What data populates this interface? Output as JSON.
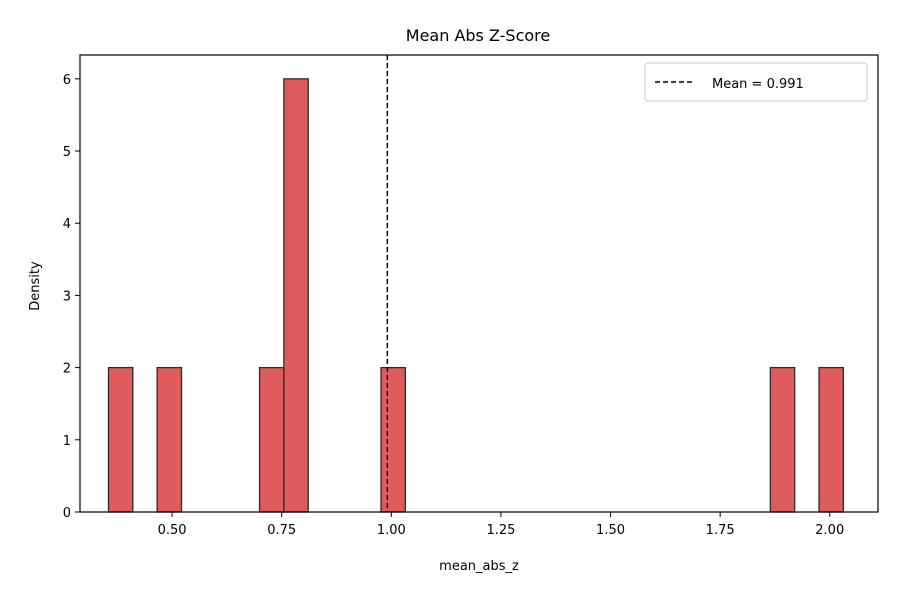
{
  "chart_data": {
    "type": "histogram",
    "title": "Mean Abs Z-Score",
    "xlabel": "mean_abs_z",
    "ylabel": "Density",
    "xlim": [
      0.29,
      2.11
    ],
    "ylim": [
      0,
      6.33
    ],
    "xticks": [
      0.5,
      0.75,
      1.0,
      1.25,
      1.5,
      1.75,
      2.0
    ],
    "xtick_labels": [
      "0.50",
      "0.75",
      "1.00",
      "1.25",
      "1.50",
      "1.75",
      "2.00"
    ],
    "yticks": [
      0,
      1,
      2,
      3,
      4,
      5,
      6
    ],
    "ytick_labels": [
      "0",
      "1",
      "2",
      "3",
      "4",
      "5",
      "6"
    ],
    "bins": [
      {
        "x0": 0.355,
        "x1": 0.4105,
        "density": 2
      },
      {
        "x0": 0.466,
        "x1": 0.5215,
        "density": 2
      },
      {
        "x0": 0.6995,
        "x1": 0.755,
        "density": 2
      },
      {
        "x0": 0.755,
        "x1": 0.8105,
        "density": 6
      },
      {
        "x0": 0.9765,
        "x1": 1.032,
        "density": 2
      },
      {
        "x0": 1.8645,
        "x1": 1.92,
        "density": 2
      },
      {
        "x0": 1.9755,
        "x1": 2.031,
        "density": 2
      }
    ],
    "mean_line": {
      "x": 0.991,
      "style": "dashed",
      "color": "#000000"
    },
    "legend": {
      "position": "upper right",
      "entries": [
        "Mean = 0.991"
      ]
    },
    "colors": {
      "bar_fill": "#e05c5c",
      "bar_edge": "#2b2b2b"
    },
    "grid": false
  }
}
